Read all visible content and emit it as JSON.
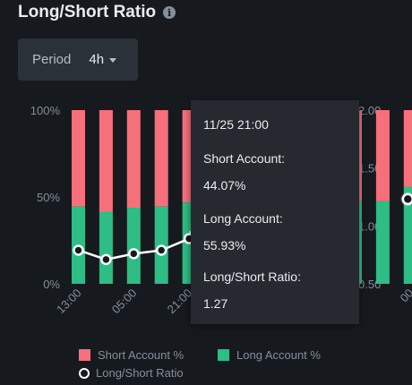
{
  "header": {
    "title": "Long/Short Ratio",
    "info_icon": "i"
  },
  "period": {
    "label": "Period",
    "value": "4h"
  },
  "colors": {
    "short": "#f6707c",
    "long": "#2ebd85",
    "ratio_line": "#ffffff",
    "background": "#161a1e"
  },
  "chart_data": {
    "type": "bar",
    "stacked": true,
    "x": [
      "13:00",
      "",
      "05:00",
      "",
      "21:00",
      "",
      "",
      "",
      "",
      "",
      "",
      "",
      "00"
    ],
    "series": [
      {
        "name": "Long Account %",
        "axis": "left",
        "values": [
          44.5,
          41.5,
          43.8,
          44.5,
          46.8,
          47.5,
          47.5,
          47.5,
          47.5,
          47.5,
          47.5,
          47.5,
          55.93
        ]
      },
      {
        "name": "Short Account %",
        "axis": "left",
        "values": [
          55.5,
          58.5,
          56.2,
          55.5,
          53.2,
          52.5,
          52.5,
          52.5,
          52.5,
          52.5,
          52.5,
          52.5,
          44.07
        ]
      },
      {
        "name": "Long/Short Ratio",
        "type": "line",
        "axis": "right",
        "values": [
          0.79,
          0.71,
          0.76,
          0.79,
          0.89,
          null,
          null,
          null,
          null,
          null,
          null,
          null,
          1.27
        ]
      }
    ],
    "y_left": {
      "ticks": [
        "100%",
        "50%",
        "0%"
      ],
      "range": [
        0,
        100
      ]
    },
    "y_right": {
      "ticks": [
        "2.00",
        "1.50",
        "1.00",
        "0.50"
      ],
      "range": [
        0.5,
        2.0
      ]
    },
    "legend": [
      {
        "label": "Short Account %"
      },
      {
        "label": "Long Account %"
      },
      {
        "label": "Long/Short Ratio"
      }
    ],
    "legend_position": "bottom"
  },
  "tooltip": {
    "time": "11/25 21:00",
    "short_label": "Short Account:",
    "short_value": "44.07%",
    "long_label": "Long Account:",
    "long_value": "55.93%",
    "ratio_label": "Long/Short Ratio:",
    "ratio_value": "1.27"
  }
}
